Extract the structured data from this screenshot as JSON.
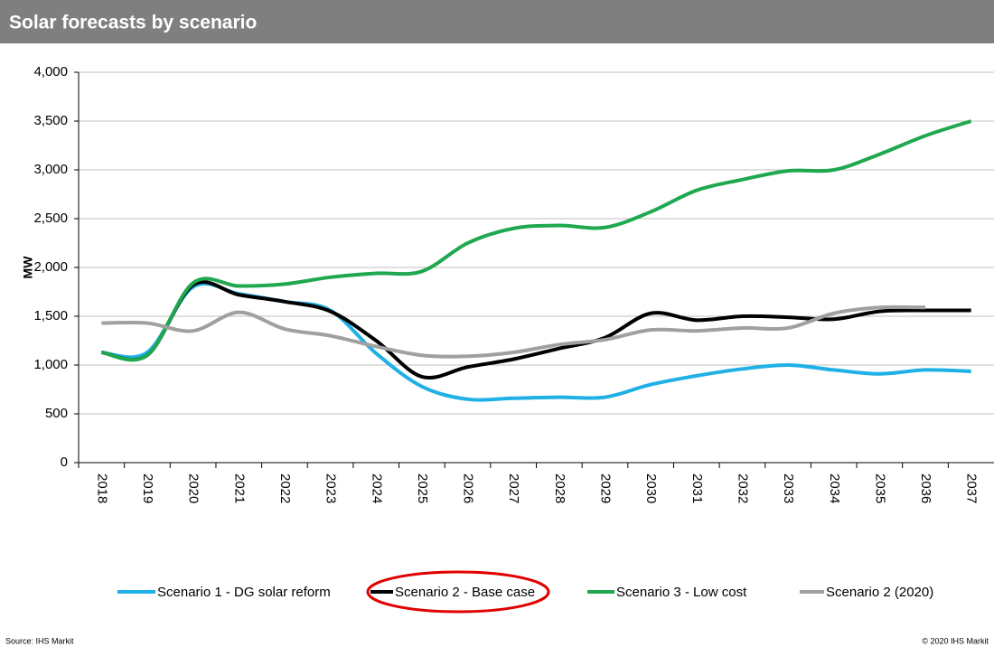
{
  "chart_data": {
    "type": "line",
    "title": "Solar forecasts by scenario",
    "y_label": "MW",
    "source": "Source: IHS Markit",
    "copyright": "© 2020 IHS Markit",
    "categories": [
      "2018",
      "2019",
      "2020",
      "2021",
      "2022",
      "2023",
      "2024",
      "2025",
      "2026",
      "2027",
      "2028",
      "2029",
      "2030",
      "2031",
      "2032",
      "2033",
      "2034",
      "2035",
      "2036",
      "2037"
    ],
    "ylim": [
      0,
      4000
    ],
    "yticks": [
      0,
      500,
      {
        "value": 1000,
        "label": "1,000"
      },
      {
        "value": 1500,
        "label": "1,500"
      },
      {
        "value": 2000,
        "label": "2,000"
      },
      {
        "value": 2500,
        "label": "2,500"
      },
      {
        "value": 3000,
        "label": "3,000"
      },
      {
        "value": 3500,
        "label": "3,500"
      },
      {
        "value": 4000,
        "label": "4,000"
      }
    ],
    "grid": true,
    "series": [
      {
        "name": "Scenario 1 - DG solar reform",
        "color": "#1fb0e6",
        "values": [
          1130,
          1130,
          1800,
          1730,
          1650,
          1560,
          1120,
          780,
          650,
          660,
          670,
          670,
          800,
          890,
          960,
          1000,
          950,
          910,
          950,
          935
        ]
      },
      {
        "name": "Scenario 2 - Base case",
        "color": "#000000",
        "values": [
          1130,
          1100,
          1820,
          1720,
          1650,
          1550,
          1250,
          880,
          980,
          1060,
          1170,
          1280,
          1530,
          1460,
          1500,
          1490,
          1470,
          1550,
          1560,
          1560
        ]
      },
      {
        "name": "Scenario 3 - Low cost",
        "color": "#1fa84f",
        "values": [
          1130,
          1100,
          1840,
          1810,
          1830,
          1900,
          1940,
          1960,
          2250,
          2400,
          2430,
          2410,
          2570,
          2790,
          2900,
          2990,
          3000,
          3160,
          3350,
          3500
        ]
      },
      {
        "name": "Scenario 2 (2020)",
        "color": "#a0a0a0",
        "values": [
          1430,
          1430,
          1350,
          1540,
          1370,
          1300,
          1190,
          1100,
          1090,
          1130,
          1210,
          1260,
          1360,
          1350,
          1380,
          1380,
          1530,
          1590,
          1590,
          null
        ]
      }
    ]
  }
}
